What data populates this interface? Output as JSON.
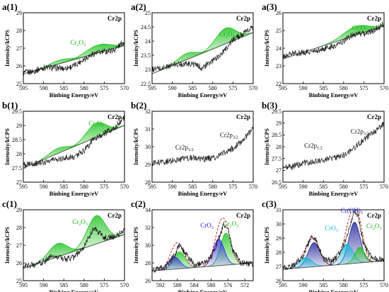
{
  "figure": {
    "xlabel": "Binbing Energy/eV",
    "ylabel": "Intensity/kCPS",
    "element_label": "Cr2p"
  },
  "colors": {
    "raw": "#1a1a1a",
    "background": "#555555",
    "cr2o3_fill": "#27c427",
    "cro3_fill": "#3a3ad8",
    "croh3_fill": "#2b2b9e",
    "fit_envelope": "#d42020",
    "label_green": "#19b419",
    "label_blue": "#1a1ad0",
    "label_cyan": "#18b8d8"
  },
  "chart_data": [
    {
      "panel": "a(1)",
      "type": "line",
      "xlim": [
        595,
        570
      ],
      "ylim": [
        25,
        29
      ],
      "xticks": [
        595,
        590,
        585,
        580,
        575,
        570
      ],
      "yticks": [
        25,
        26,
        27,
        28,
        29
      ],
      "raw": {
        "x": [
          595,
          592.5,
          590,
          587.5,
          585,
          582.5,
          580,
          577.5,
          575,
          572.5,
          570
        ],
        "y": [
          25.6,
          25.7,
          25.9,
          25.9,
          25.85,
          26.0,
          26.4,
          26.7,
          26.8,
          26.9,
          27.4
        ]
      },
      "background": {
        "x": [
          595,
          570
        ],
        "y": [
          25.55,
          27.15
        ]
      },
      "peaks": [
        {
          "label": "Cr2O3",
          "center": 576.5,
          "height": 0.45,
          "width": 3.0,
          "color": "green"
        },
        {
          "label": "",
          "center": 586.0,
          "height": 0.2,
          "width": 2.6,
          "color": "green"
        }
      ],
      "annotations": [
        {
          "text": "Cr",
          "sub": "2",
          "text2": "O",
          "sub2": "3",
          "x": 581.5,
          "y": 27.2,
          "color": "green"
        }
      ]
    },
    {
      "panel": "a(2)",
      "type": "line",
      "xlim": [
        595,
        570
      ],
      "ylim": [
        22.5,
        25.0
      ],
      "xticks": [
        595,
        590,
        585,
        580,
        575,
        570
      ],
      "yticks": [
        22.5,
        23.0,
        23.5,
        24.0,
        24.5,
        25.0
      ],
      "raw": {
        "x": [
          595,
          592.5,
          590,
          587.5,
          585,
          582.5,
          580,
          577.5,
          575,
          572.5,
          570
        ],
        "y": [
          23.0,
          23.05,
          23.15,
          23.2,
          23.2,
          23.05,
          23.3,
          23.6,
          24.05,
          24.25,
          24.5
        ]
      },
      "background": {
        "x": [
          595,
          570
        ],
        "y": [
          22.85,
          24.3
        ]
      },
      "peaks": [
        {
          "label": "Cr2O3",
          "center": 576.8,
          "height": 0.55,
          "width": 2.4,
          "color": "green"
        },
        {
          "label": "",
          "center": 586.5,
          "height": 0.22,
          "width": 2.2,
          "color": "green"
        }
      ],
      "annotations": [
        {
          "text": "Cr",
          "sub": "2",
          "text2": "O",
          "sub2": "3",
          "x": 576.5,
          "y": 24.18,
          "color": "green"
        }
      ]
    },
    {
      "panel": "a(3)",
      "type": "line",
      "xlim": [
        595,
        570
      ],
      "ylim": [
        22,
        26
      ],
      "xticks": [
        595,
        590,
        585,
        580,
        575,
        570
      ],
      "yticks": [
        22,
        23,
        24,
        25,
        26
      ],
      "raw": {
        "x": [
          595,
          592.5,
          590,
          587.5,
          585,
          582.5,
          580,
          577.5,
          575,
          572.5,
          570
        ],
        "y": [
          23.5,
          23.7,
          23.75,
          23.8,
          23.95,
          24.1,
          24.4,
          24.8,
          24.8,
          25.0,
          25.4
        ]
      },
      "background": {
        "x": [
          595,
          570
        ],
        "y": [
          23.4,
          25.25
        ]
      },
      "peaks": [
        {
          "label": "Cr2O3",
          "center": 577.0,
          "height": 0.5,
          "width": 3.0,
          "color": "green"
        }
      ],
      "annotations": [
        {
          "text": "Cr",
          "sub": "2",
          "text2": "O",
          "sub2": "3",
          "x": 576.0,
          "y": 25.05,
          "color": "green"
        }
      ]
    },
    {
      "panel": "b(1)",
      "type": "line",
      "xlim": [
        595,
        570
      ],
      "ylim": [
        27.0,
        29.5
      ],
      "xticks": [
        595,
        590,
        585,
        580,
        575,
        570
      ],
      "yticks": [
        27.0,
        27.5,
        28.0,
        28.5,
        29.0,
        29.5
      ],
      "raw": {
        "x": [
          595,
          592.5,
          590,
          587.5,
          585,
          582.5,
          580,
          577.5,
          575,
          572.5,
          570
        ],
        "y": [
          27.6,
          27.65,
          27.7,
          27.8,
          27.85,
          27.9,
          28.1,
          28.55,
          28.7,
          28.9,
          29.3
        ]
      },
      "background": {
        "x": [
          595,
          570
        ],
        "y": [
          27.5,
          29.0
        ]
      },
      "peaks": [
        {
          "label": "Cr2O3",
          "center": 577.0,
          "height": 0.5,
          "width": 2.4,
          "color": "green"
        },
        {
          "label": "",
          "center": 586.5,
          "height": 0.18,
          "width": 2.2,
          "color": "green"
        }
      ],
      "annotations": [
        {
          "text": "Cr",
          "sub": "2",
          "text2": "O",
          "sub2": "3",
          "x": 577.0,
          "y": 29.0,
          "color": "green"
        }
      ]
    },
    {
      "panel": "b(2)",
      "type": "line",
      "xlim": [
        595,
        570
      ],
      "ylim": [
        28,
        32
      ],
      "xticks": [
        595,
        590,
        585,
        580,
        575,
        570
      ],
      "yticks": [
        28,
        29,
        30,
        31,
        32
      ],
      "raw": {
        "x": [
          595,
          592.5,
          590,
          587.5,
          585,
          582.5,
          580,
          577.5,
          575,
          572.5,
          570
        ],
        "y": [
          29.05,
          29.1,
          29.25,
          29.3,
          29.4,
          29.3,
          29.35,
          29.6,
          29.9,
          30.4,
          31.0
        ]
      },
      "background": null,
      "peaks": [],
      "annotations": [
        {
          "text": "Cr2p",
          "sub": "1/2",
          "text2": "",
          "sub2": "",
          "x": 587.0,
          "y": 29.85,
          "color": "black"
        },
        {
          "text": "Cr2p",
          "sub": "3/2",
          "text2": "",
          "sub2": "",
          "x": 576.0,
          "y": 30.55,
          "color": "black"
        }
      ]
    },
    {
      "panel": "b(3)",
      "type": "line",
      "xlim": [
        595,
        570
      ],
      "ylim": [
        26.5,
        29.5
      ],
      "xticks": [
        595,
        590,
        585,
        580,
        575,
        570
      ],
      "yticks": [
        26.5,
        27.0,
        27.5,
        28.0,
        28.5,
        29.0,
        29.5
      ],
      "raw": {
        "x": [
          595,
          592.5,
          590,
          587.5,
          585,
          582.5,
          580,
          577.5,
          575,
          572.5,
          570
        ],
        "y": [
          27.1,
          27.15,
          27.3,
          27.35,
          27.45,
          27.5,
          27.65,
          27.95,
          28.3,
          28.6,
          29.0
        ]
      },
      "background": null,
      "peaks": [],
      "annotations": [
        {
          "text": "Cr2p",
          "sub": "1/2",
          "text2": "",
          "sub2": "",
          "x": 587.5,
          "y": 27.95,
          "color": "black"
        },
        {
          "text": "Cr2p",
          "sub": "3/2",
          "text2": "",
          "sub2": "",
          "x": 576.0,
          "y": 28.55,
          "color": "black"
        }
      ]
    },
    {
      "panel": "c(1)",
      "type": "line",
      "xlim": [
        595,
        570
      ],
      "ylim": [
        25,
        29
      ],
      "xticks": [
        595,
        590,
        585,
        580,
        575,
        570
      ],
      "yticks": [
        25,
        26,
        27,
        28,
        29
      ],
      "raw": {
        "x": [
          595,
          592.5,
          590,
          587.5,
          585,
          582.5,
          580,
          577.5,
          575,
          572.5,
          570
        ],
        "y": [
          25.8,
          25.9,
          26.05,
          26.45,
          26.2,
          26.3,
          26.9,
          28.0,
          27.4,
          27.5,
          27.8
        ]
      },
      "background": {
        "x": [
          595,
          570
        ],
        "y": [
          25.7,
          27.6
        ]
      },
      "peaks": [
        {
          "label": "Cr2O3",
          "center": 577.0,
          "height": 1.6,
          "width": 2.2,
          "color": "green"
        },
        {
          "label": "",
          "center": 586.5,
          "height": 0.75,
          "width": 2.2,
          "color": "green"
        }
      ],
      "annotations": [
        {
          "text": "Cr",
          "sub": "2",
          "text2": "O",
          "sub2": "3",
          "x": 581.0,
          "y": 28.2,
          "color": "green"
        }
      ]
    },
    {
      "panel": "c(2)",
      "type": "line",
      "xlim": [
        594,
        570
      ],
      "ylim": [
        26,
        34
      ],
      "xticks": [
        592,
        588,
        584,
        580,
        576,
        572
      ],
      "yticks": [
        26,
        28,
        30,
        32,
        34
      ],
      "raw": {
        "x": [
          594,
          591,
          589,
          587.5,
          586,
          584,
          582,
          580,
          578,
          577,
          576,
          575,
          573,
          570
        ],
        "y": [
          27.2,
          27.5,
          28.6,
          30.0,
          29.0,
          27.8,
          27.9,
          28.6,
          31.0,
          32.4,
          32.1,
          29.6,
          28.0,
          27.9
        ]
      },
      "background": {
        "x": [
          594,
          570
        ],
        "y": [
          27.1,
          28.0
        ]
      },
      "peaks": [
        {
          "label": "Cr2O3",
          "center": 576.5,
          "height": 3.6,
          "width": 1.3,
          "color": "green"
        },
        {
          "label": "CrO3",
          "center": 578.2,
          "height": 3.0,
          "width": 1.3,
          "color": "blue"
        },
        {
          "label": "",
          "center": 587.5,
          "height": 1.9,
          "width": 1.4,
          "color": "green"
        },
        {
          "label": "",
          "center": 588.8,
          "height": 1.4,
          "width": 1.4,
          "color": "blue"
        }
      ],
      "envelope": true,
      "annotations": [
        {
          "text": "CrO",
          "sub": "3",
          "text2": "",
          "sub2": "",
          "x": 581.0,
          "y": 32.0,
          "color": "blue"
        },
        {
          "text": "Cr",
          "sub": "2",
          "text2": "O",
          "sub2": "3",
          "x": 575.3,
          "y": 32.2,
          "color": "green"
        }
      ]
    },
    {
      "panel": "c(3)",
      "type": "line",
      "xlim": [
        595,
        570
      ],
      "ylim": [
        26,
        31
      ],
      "xticks": [
        595,
        590,
        585,
        580,
        575,
        570
      ],
      "yticks": [
        26,
        27,
        28,
        29,
        30,
        31
      ],
      "raw": {
        "x": [
          595,
          592,
          590,
          588,
          587,
          585,
          583,
          581,
          579,
          577.5,
          576.5,
          575,
          573,
          570
        ],
        "y": [
          26.9,
          27.1,
          27.8,
          29.1,
          28.9,
          27.6,
          27.4,
          27.9,
          29.2,
          30.9,
          30.6,
          28.5,
          27.6,
          27.4
        ]
      },
      "background": {
        "x": [
          595,
          570
        ],
        "y": [
          26.8,
          27.4
        ]
      },
      "peaks": [
        {
          "label": "Cr(OH)3",
          "center": 577.3,
          "height": 2.9,
          "width": 1.4,
          "color": "navy"
        },
        {
          "label": "CrO3",
          "center": 579.2,
          "height": 1.4,
          "width": 1.5,
          "color": "cyan"
        },
        {
          "label": "Cr2O3",
          "center": 576.0,
          "height": 1.1,
          "width": 1.2,
          "color": "green"
        },
        {
          "label": "",
          "center": 587.3,
          "height": 1.7,
          "width": 1.5,
          "color": "navy"
        },
        {
          "label": "",
          "center": 589.5,
          "height": 0.7,
          "width": 1.6,
          "color": "cyan"
        }
      ],
      "envelope": true,
      "annotations": [
        {
          "text": "Cr(OH)",
          "sub": "3",
          "text2": "",
          "sub2": "",
          "x": 578.0,
          "y": 30.8,
          "color": "navy"
        },
        {
          "text": "CrO",
          "sub": "3",
          "text2": "",
          "sub2": "",
          "x": 583.0,
          "y": 29.55,
          "color": "cyan"
        },
        {
          "text": "Cr",
          "sub": "2",
          "text2": "O",
          "sub2": "3",
          "x": 572.5,
          "y": 29.7,
          "color": "green"
        }
      ]
    }
  ]
}
